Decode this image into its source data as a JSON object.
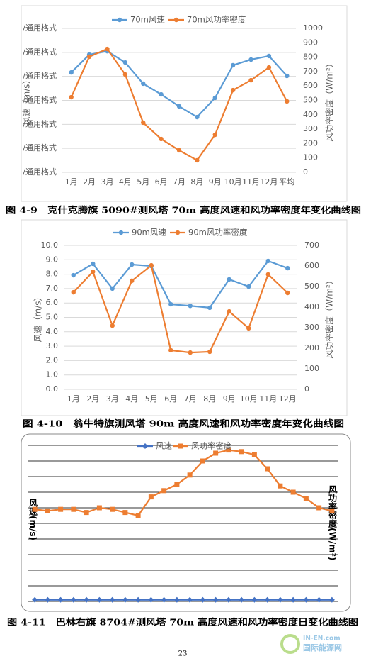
{
  "chart_data": [
    {
      "type": "line",
      "y_label": "风速（m/s）",
      "y2_label": "风功率密度（W/m²）",
      "categories": [
        "1月",
        "2月",
        "3月",
        "4月",
        "5月",
        "6月",
        "7月",
        "8月",
        "9月",
        "10月",
        "11月",
        "12月",
        "平均"
      ],
      "series": [
        {
          "name": "70m风速",
          "color": "#5b9bd5",
          "marker": "circle",
          "values": [
            8.33,
            9.81,
            10.1,
            9.16,
            7.39,
            6.5,
            5.5,
            4.61,
            6.21,
            8.93,
            9.4,
            9.7,
            8.04
          ]
        },
        {
          "name": "70m风功率密度",
          "color": "#ed7d31",
          "marker": "circle",
          "axis": "y2",
          "values": [
            522,
            803,
            857,
            680,
            345,
            232,
            153,
            84,
            261,
            571,
            640,
            729,
            493
          ]
        }
      ],
      "ylim": [
        0,
        12
      ],
      "yticks": [
        {
          "value": 0,
          "label": "/通用格式"
        },
        {
          "value": 2,
          "label": "/通用格式"
        },
        {
          "value": 4,
          "label": "/通用格式"
        },
        {
          "value": 6,
          "label": "/通用格式"
        },
        {
          "value": 8,
          "label": "/通用格式"
        },
        {
          "value": 10,
          "label": "/通用格式"
        },
        {
          "value": 12,
          "label": "/通用格式"
        }
      ],
      "y2lim": [
        0,
        1000
      ],
      "y2ticks": [
        0,
        100,
        200,
        300,
        400,
        500,
        600,
        700,
        800,
        900,
        1000
      ],
      "grid": true
    },
    {
      "type": "line",
      "y_label": "风速（m/s）",
      "y2_label": "风功率密度（W/m²）",
      "categories": [
        "1月",
        "2月",
        "3月",
        "4月",
        "5月",
        "6月",
        "7月",
        "8月",
        "9月",
        "10月",
        "11月",
        "12月"
      ],
      "series": [
        {
          "name": "90m风速",
          "color": "#5b9bd5",
          "marker": "circle",
          "values": [
            7.93,
            8.72,
            7.0,
            8.67,
            8.57,
            5.91,
            5.8,
            5.67,
            7.64,
            7.14,
            8.92,
            8.42
          ]
        },
        {
          "name": "90m风功率密度",
          "color": "#ed7d31",
          "marker": "circle",
          "axis": "y2",
          "values": [
            472,
            572,
            310,
            528,
            603,
            190,
            179,
            183,
            379,
            297,
            559,
            469
          ]
        }
      ],
      "ylim": [
        0,
        10
      ],
      "yticks": [
        {
          "value": 0,
          "label": "0.0"
        },
        {
          "value": 1,
          "label": "1.0"
        },
        {
          "value": 2,
          "label": "2.0"
        },
        {
          "value": 3,
          "label": "3.0"
        },
        {
          "value": 4,
          "label": "4.0"
        },
        {
          "value": 5,
          "label": "5.0"
        },
        {
          "value": 6,
          "label": "6.0"
        },
        {
          "value": 7,
          "label": "7.0"
        },
        {
          "value": 8,
          "label": "8.0"
        },
        {
          "value": 9,
          "label": "9.0"
        },
        {
          "value": 10,
          "label": "10.0"
        }
      ],
      "y2lim": [
        0,
        700
      ],
      "y2ticks": [
        0,
        100,
        200,
        300,
        400,
        500,
        600,
        700
      ],
      "grid": true
    },
    {
      "type": "line",
      "y_label": "风速(m/s)",
      "y2_label": "风功率密度(W/m²)",
      "categories": [
        null,
        null,
        null,
        null,
        null,
        null,
        null,
        null,
        null,
        null,
        null,
        null,
        null,
        null,
        null,
        null,
        null,
        null,
        null,
        null,
        null,
        null,
        null,
        null
      ],
      "series": [
        {
          "name": "风速",
          "color": "#4472c4",
          "marker": "diamond",
          "values": [
            0.1,
            0.1,
            0.1,
            0.1,
            0.1,
            0.1,
            0.1,
            0.1,
            0.1,
            0.1,
            0.1,
            0.1,
            0.1,
            0.1,
            0.1,
            0.1,
            0.1,
            0.1,
            0.1,
            0.1,
            0.1,
            0.1,
            0.1,
            0.1
          ]
        },
        {
          "name": "风功率密度",
          "color": "#ed7d31",
          "marker": "square",
          "values": [
            5.9,
            5.8,
            5.9,
            5.9,
            5.7,
            6.0,
            5.9,
            5.7,
            5.5,
            6.7,
            7.1,
            7.5,
            8.1,
            9.0,
            9.5,
            9.7,
            9.6,
            9.4,
            8.5,
            7.4,
            7.0,
            6.6,
            6.0,
            5.8
          ]
        }
      ],
      "ylim": [
        0,
        10
      ],
      "grid": true
    }
  ],
  "captions": [
    "图 4-9　克什克腾旗 5090#测风塔 70m 高度风速和风功率密度年变化曲线图",
    "图 4-10　翁牛特旗测风塔 90m 高度风速和风功率密度年变化曲线图",
    "图 4-11　巴林右旗 8704#测风塔 70m 高度风速和风功率密度日变化曲线图"
  ],
  "page_number": "23",
  "watermark": {
    "site": "IN-EN.com",
    "name": "国际能源网"
  }
}
